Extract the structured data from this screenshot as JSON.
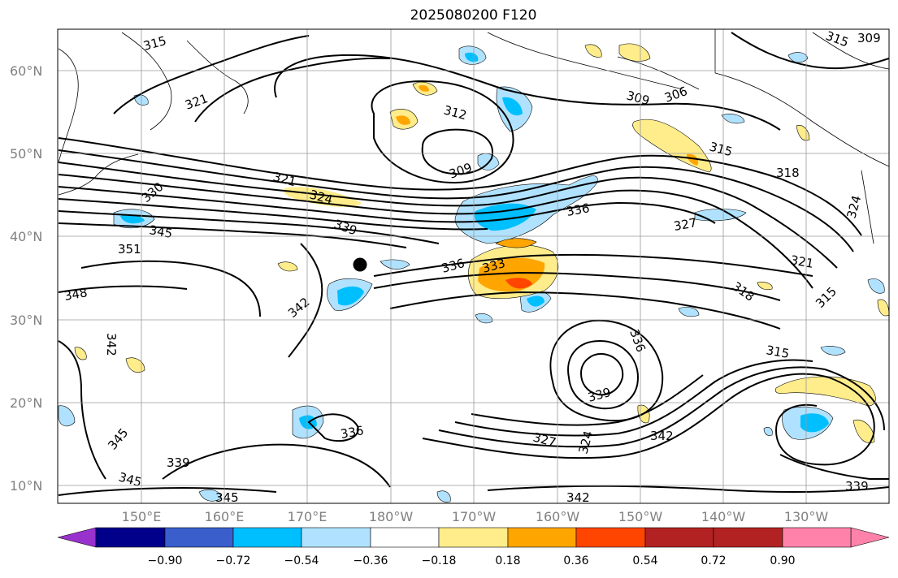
{
  "title": "2025080200 F120",
  "lat_labels": [
    "60°N",
    "50°N",
    "40°N",
    "30°N",
    "20°N",
    "10°N"
  ],
  "lon_labels": [
    "150°E",
    "160°E",
    "170°E",
    "180°W",
    "170°W",
    "160°W",
    "150°W",
    "140°W",
    "130°W"
  ],
  "colorbar": {
    "ticks": [
      "−0.90",
      "−0.72",
      "−0.54",
      "−0.36",
      "−0.18",
      "0.18",
      "0.36",
      "0.54",
      "0.72",
      "0.90"
    ],
    "colors": [
      "#9932cc",
      "#00008b",
      "#3a5fcd",
      "#00bfff",
      "#b0e2ff",
      "#ffffff",
      "#ffec8b",
      "#ffa500",
      "#ff4500",
      "#b22222",
      "#ff82ab"
    ]
  },
  "contour_labels": [
    "309",
    "312",
    "315",
    "318",
    "321",
    "324",
    "327",
    "330",
    "333",
    "336",
    "339",
    "342",
    "345",
    "348",
    "351"
  ],
  "marker": "black-dot"
}
